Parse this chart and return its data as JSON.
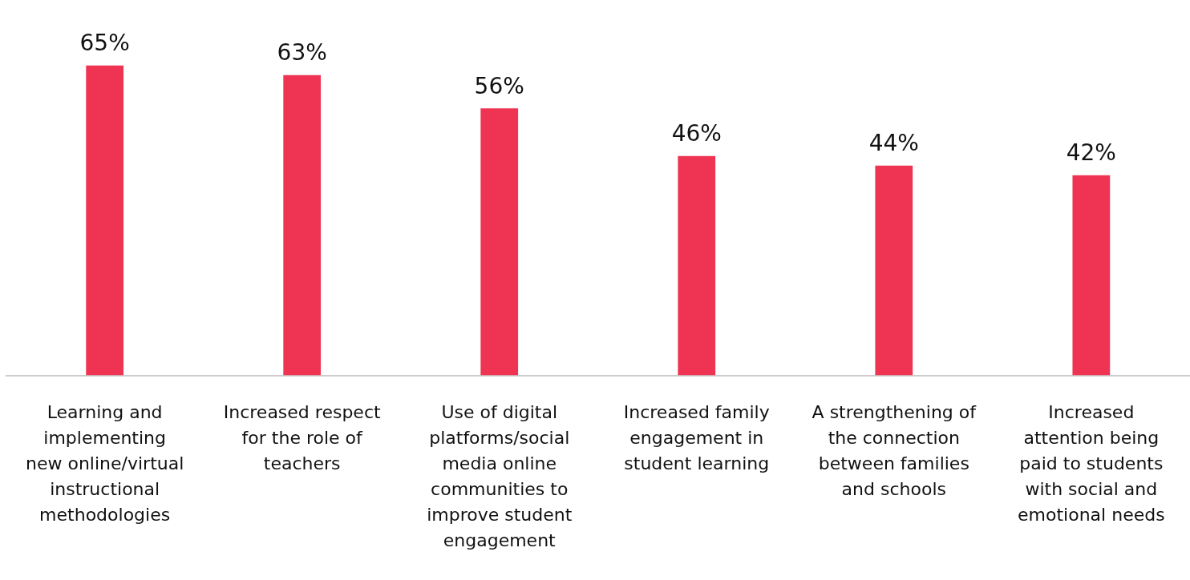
{
  "chart_data": {
    "type": "bar",
    "categories": [
      "Learning and implementing new online/virtual instructional methodologies",
      "Increased respect for the role of teachers",
      "Use of digital platforms/social media online communities to improve student engagement",
      "Increased family engagement in student learning",
      "A strengthening of the connection between families and schools",
      "Increased attention being paid to students with social and emotional needs"
    ],
    "values": [
      65,
      63,
      56,
      46,
      44,
      42
    ],
    "value_labels": [
      "65%",
      "63%",
      "56%",
      "46%",
      "44%",
      "42%"
    ],
    "color": "#ee3452",
    "grid": false,
    "legend": false,
    "tick_labels": "x"
  }
}
